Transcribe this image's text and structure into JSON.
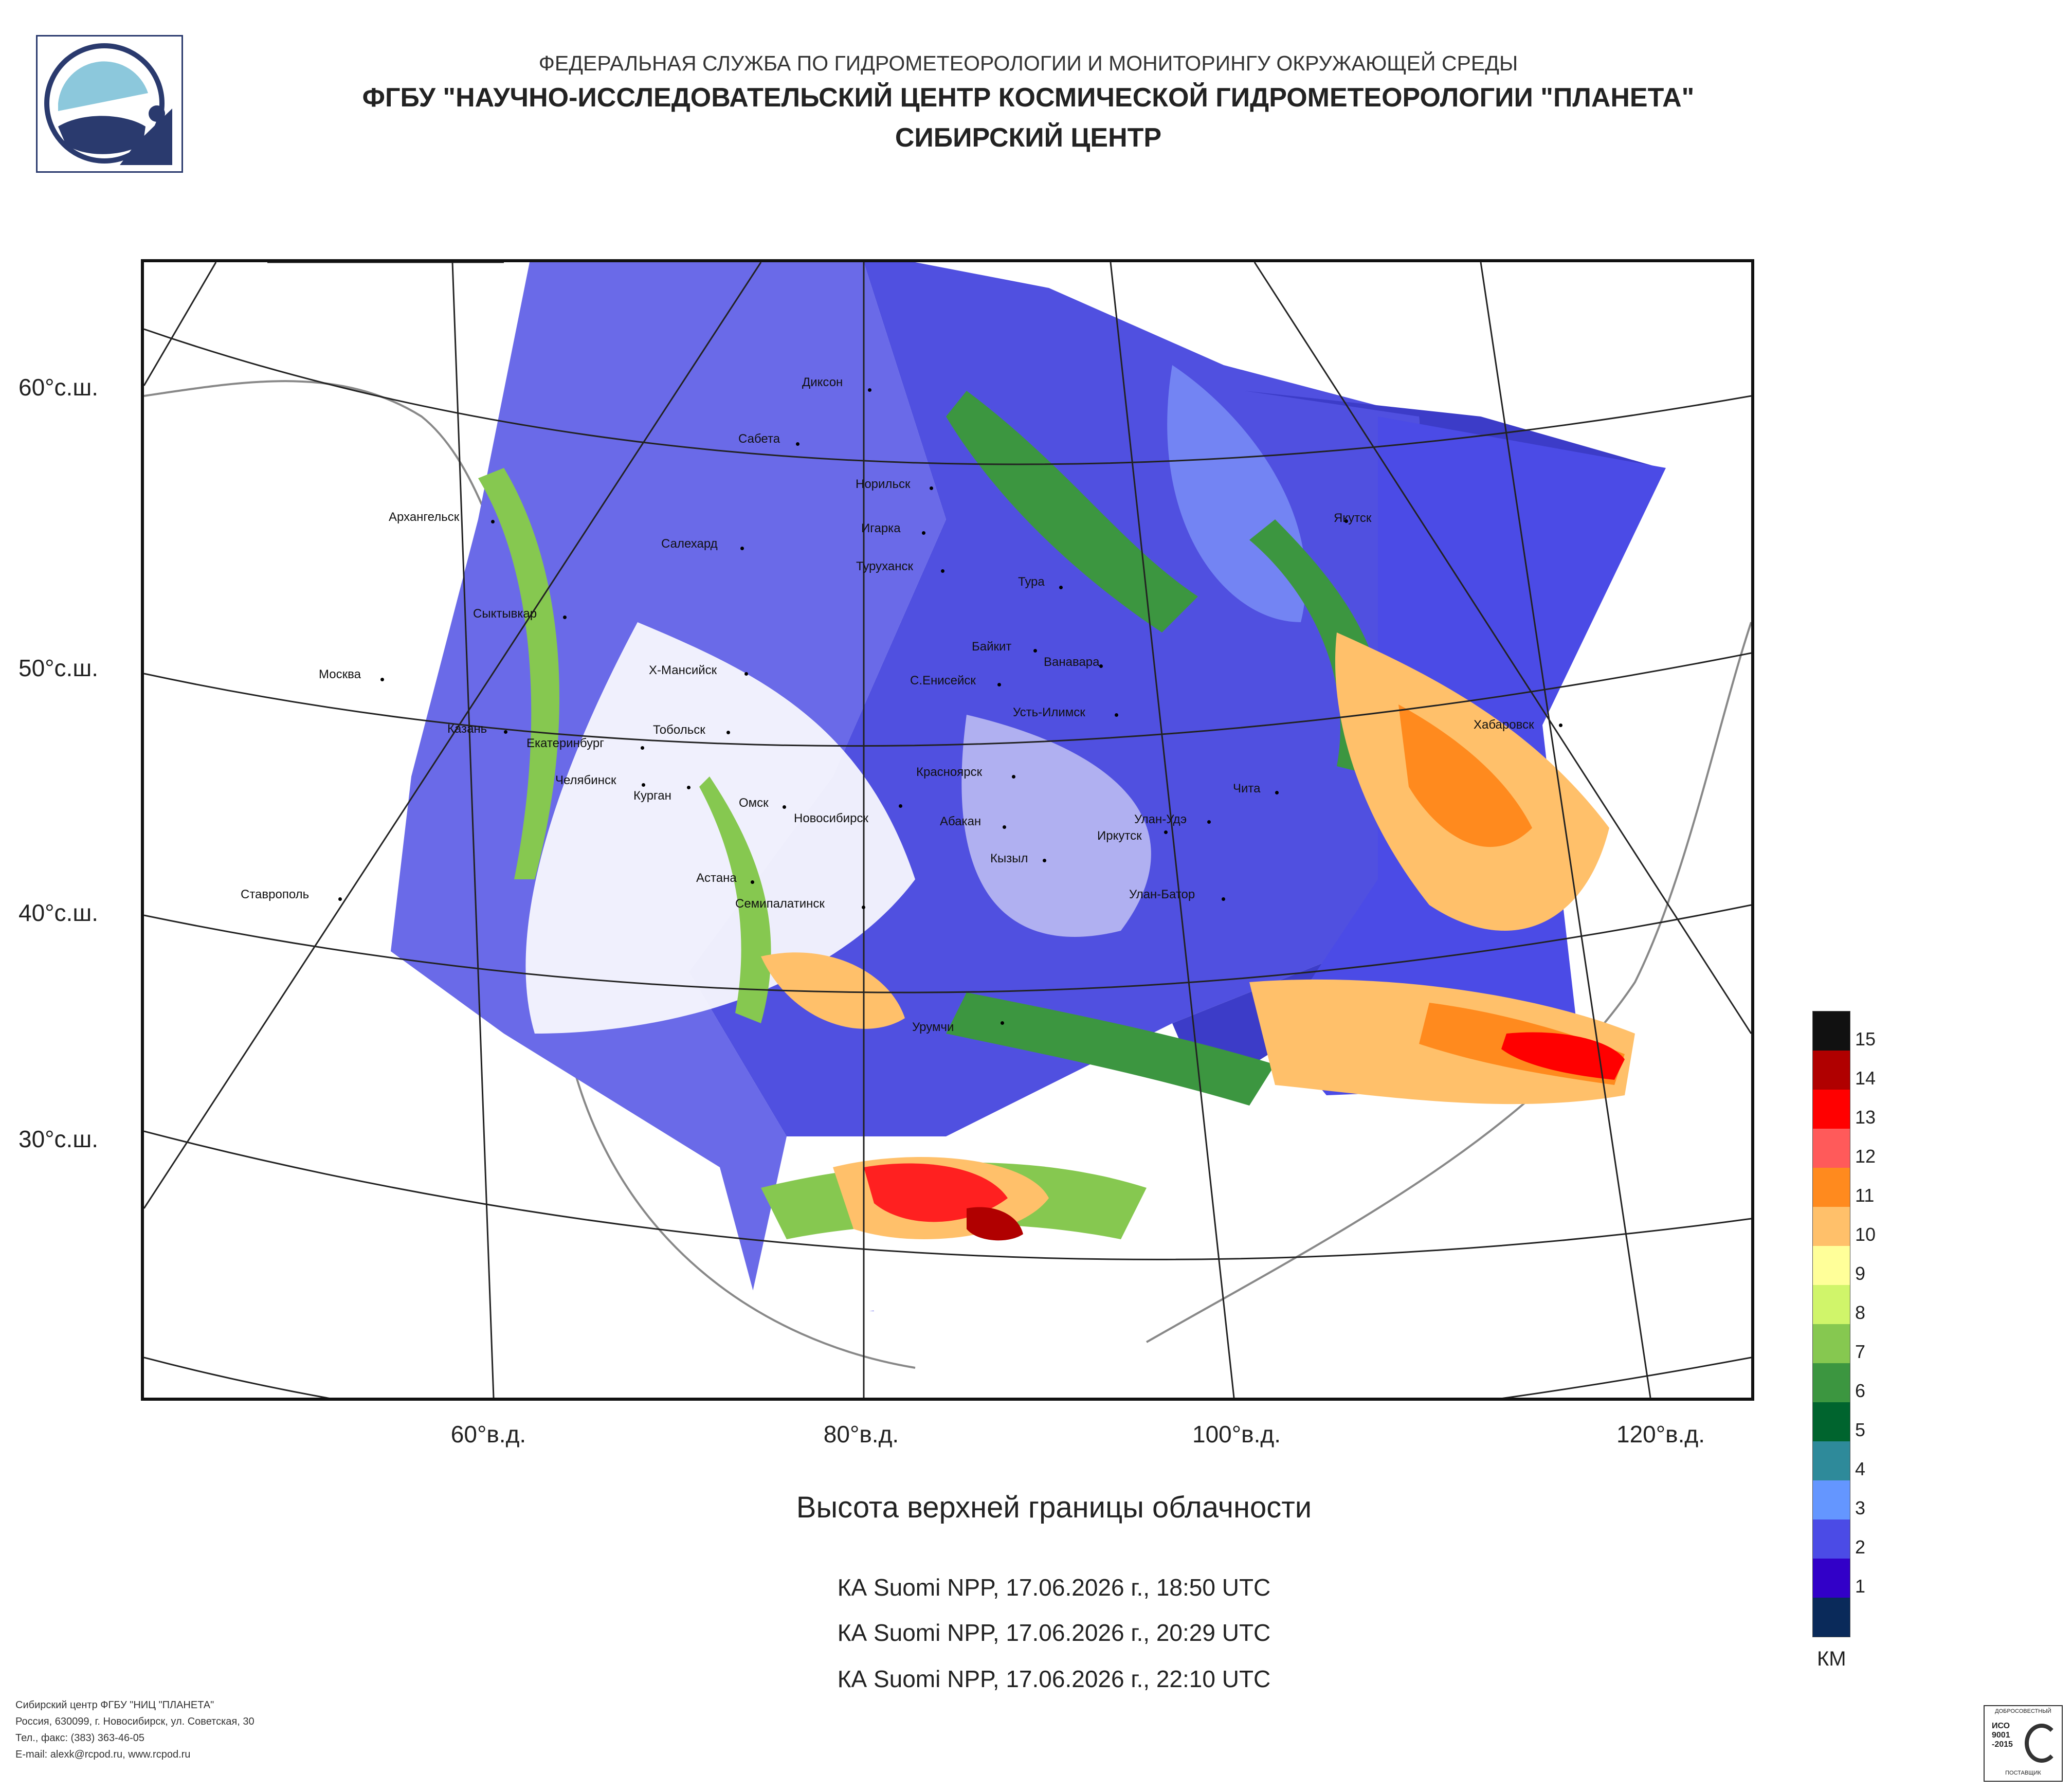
{
  "header": {
    "agency": "ФЕДЕРАЛЬНАЯ СЛУЖБА ПО ГИДРОМЕТЕОРОЛОГИИ И МОНИТОРИНГУ ОКРУЖАЮЩЕЙ СРЕДЫ",
    "institute": "ФГБУ \"НАУЧНО-ИССЛЕДОВАТЕЛЬСКИЙ ЦЕНТР КОСМИЧЕСКОЙ ГИДРОМЕТЕОРОЛОГИИ \"ПЛАНЕТА\"",
    "center": "СИБИРСКИЙ ЦЕНТР"
  },
  "map": {
    "latitude_labels": [
      "60°с.ш.",
      "50°с.ш.",
      "40°с.ш.",
      "30°с.ш."
    ],
    "longitude_labels": [
      "60°в.д.",
      "80°в.д.",
      "100°в.д.",
      "120°в.д."
    ],
    "cities": [
      "Диксон",
      "Сабета",
      "Норильск",
      "Игарка",
      "Архангельск",
      "Салехард",
      "Туруханск",
      "Тура",
      "Якутск",
      "Сыктывкар",
      "Байкит",
      "Ванавара",
      "Москва",
      "Х-Мансийск",
      "С.Енисейск",
      "Усть-Илимск",
      "Хабаровск",
      "Казань",
      "Тобольск",
      "Екатеринбург",
      "Челябинск",
      "Курган",
      "Красноярск",
      "Чита",
      "Омск",
      "Новосибирск",
      "Абакан",
      "Улан-Удэ",
      "Иркутск",
      "Кызыл",
      "Астана",
      "Ставрополь",
      "Семипалатинск",
      "Улан-Батор",
      "Урумчи"
    ]
  },
  "legend": {
    "levels": [
      {
        "value": "15",
        "color": "#111111"
      },
      {
        "value": "14",
        "color": "#b00000"
      },
      {
        "value": "13",
        "color": "#ff0000"
      },
      {
        "value": "12",
        "color": "#ff5a5a"
      },
      {
        "value": "11",
        "color": "#ff8a1e"
      },
      {
        "value": "10",
        "color": "#ffc06a"
      },
      {
        "value": "9",
        "color": "#ffff99"
      },
      {
        "value": "8",
        "color": "#d0f56a"
      },
      {
        "value": "7",
        "color": "#86c850"
      },
      {
        "value": "6",
        "color": "#3c9640"
      },
      {
        "value": "5",
        "color": "#00642e"
      },
      {
        "value": "4",
        "color": "#2e8a9a"
      },
      {
        "value": "3",
        "color": "#6496ff"
      },
      {
        "value": "2",
        "color": "#4b4be6"
      },
      {
        "value": "1",
        "color": "#3200c8"
      },
      {
        "value": "",
        "color": "#0a2a5a"
      }
    ],
    "unit": "КМ"
  },
  "product": {
    "title": "Высота верхней границы облачности",
    "passes": [
      "КА Suomi NPP, 17.06.2026 г., 18:50 UTC",
      "КА Suomi NPP, 17.06.2026 г., 20:29 UTC",
      "КА Suomi NPP, 17.06.2026 г., 22:10 UTC"
    ]
  },
  "footer": {
    "lines": [
      "Сибирский центр ФГБУ \"НИЦ \"ПЛАНЕТА\"",
      "Россия, 630099, г. Новосибирск, ул. Советская, 30",
      "Тел., факс: (383) 363-46-05",
      "E-mail: alexk@rcpod.ru, www.rcpod.ru"
    ]
  },
  "cert": {
    "top": "ДОБРОСОВЕСТНЫЙ",
    "std": "ИСО\n9001\n-2015",
    "bottom": "ПОСТАВЩИК"
  },
  "colors": {
    "logo_blue": "#2a3a6e",
    "logo_light": "#8cc8dc"
  }
}
